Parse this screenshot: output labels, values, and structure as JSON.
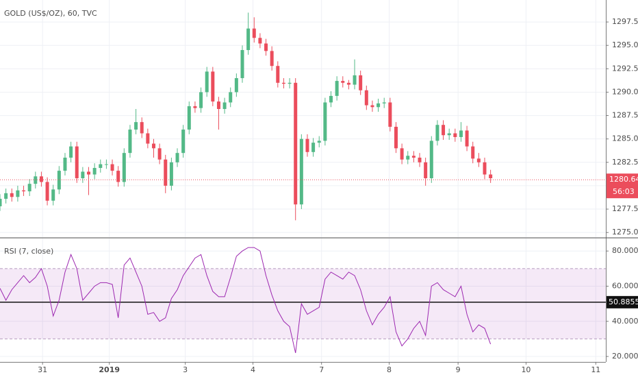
{
  "chart_data": [
    {
      "type": "candlestick",
      "title": "GOLD (US$/OZ), 60, TVC",
      "x": [
        0,
        2,
        4,
        6,
        8,
        10,
        12,
        14,
        16,
        18,
        20,
        22,
        24,
        26,
        28,
        30,
        32,
        34,
        36,
        38,
        40,
        42,
        44,
        46,
        48,
        50,
        52,
        54,
        56,
        58,
        60,
        62,
        64,
        66,
        68,
        70,
        72,
        74,
        76,
        78,
        80,
        82,
        84,
        86,
        88,
        90,
        92,
        94,
        96,
        98,
        100,
        102,
        104,
        106,
        108,
        110,
        112,
        114,
        116,
        118,
        120,
        122,
        124,
        126,
        128,
        130,
        132,
        134,
        136,
        138,
        140,
        142,
        144,
        146,
        148,
        150,
        152,
        154,
        156,
        158,
        160,
        162,
        164,
        166
      ],
      "open": [
        1277.8,
        1278.6,
        1279.2,
        1278.8,
        1279.5,
        1279.4,
        1280.2,
        1281.0,
        1280.4,
        1278.4,
        1279.6,
        1281.6,
        1283.0,
        1284.2,
        1280.8,
        1281.5,
        1281.2,
        1281.9,
        1282.3,
        1282.3,
        1281.6,
        1280.4,
        1283.5,
        1286.0,
        1286.8,
        1285.6,
        1284.5,
        1284.0,
        1282.8,
        1280.0,
        1282.5,
        1283.5,
        1286.0,
        1288.5,
        1288.3,
        1290.0,
        1292.2,
        1289.0,
        1288.2,
        1288.9,
        1290.0,
        1291.5,
        1294.5,
        1296.8,
        1295.8,
        1295.2,
        1294.4,
        1292.8,
        1291.0,
        1290.9,
        1291.0,
        1278.0,
        1285.0,
        1283.6,
        1284.6,
        1284.8,
        1288.9,
        1289.6,
        1291.2,
        1291.0,
        1290.8,
        1291.8,
        1290.2,
        1288.6,
        1288.4,
        1288.8,
        1288.9,
        1286.3,
        1284.0,
        1282.8,
        1283.2,
        1283.0,
        1282.5,
        1280.8,
        1284.8,
        1286.5,
        1285.4,
        1285.6,
        1285.2,
        1285.9,
        1284.2,
        1282.9,
        1282.5,
        1281.2
      ],
      "high": [
        1279.1,
        1279.7,
        1279.7,
        1280.0,
        1280.0,
        1280.7,
        1281.5,
        1281.5,
        1280.9,
        1280.1,
        1282.1,
        1283.5,
        1284.7,
        1284.7,
        1282.0,
        1282.0,
        1282.4,
        1282.8,
        1282.8,
        1282.8,
        1282.1,
        1284.0,
        1286.5,
        1288.2,
        1287.3,
        1286.1,
        1285.0,
        1284.5,
        1283.3,
        1283.0,
        1284.0,
        1286.5,
        1289.0,
        1289.0,
        1290.5,
        1292.7,
        1292.7,
        1289.5,
        1289.4,
        1290.5,
        1292.0,
        1295.0,
        1298.5,
        1298.0,
        1296.3,
        1295.7,
        1294.9,
        1293.3,
        1291.5,
        1291.5,
        1291.5,
        1285.5,
        1285.5,
        1285.1,
        1285.3,
        1289.4,
        1290.1,
        1291.7,
        1291.7,
        1291.3,
        1293.5,
        1292.3,
        1290.7,
        1289.1,
        1289.3,
        1289.4,
        1289.4,
        1286.8,
        1284.5,
        1283.7,
        1283.7,
        1283.5,
        1283.0,
        1285.3,
        1287.0,
        1287.0,
        1286.1,
        1286.1,
        1286.8,
        1286.4,
        1284.7,
        1283.5,
        1283.0,
        1281.7
      ],
      "low": [
        1277.3,
        1278.1,
        1278.3,
        1278.3,
        1278.9,
        1278.9,
        1279.7,
        1279.9,
        1277.9,
        1277.9,
        1279.1,
        1281.1,
        1282.5,
        1280.3,
        1280.3,
        1279.0,
        1280.7,
        1281.4,
        1281.8,
        1281.1,
        1279.9,
        1279.9,
        1283.0,
        1285.5,
        1285.1,
        1284.0,
        1283.0,
        1282.3,
        1279.2,
        1279.5,
        1282.0,
        1283.0,
        1285.5,
        1287.8,
        1287.8,
        1289.5,
        1288.5,
        1286.0,
        1287.7,
        1288.4,
        1289.5,
        1291.0,
        1294.0,
        1295.3,
        1294.7,
        1293.9,
        1292.3,
        1290.5,
        1290.4,
        1290.4,
        1276.3,
        1277.5,
        1283.1,
        1283.1,
        1284.1,
        1284.3,
        1288.4,
        1289.1,
        1290.5,
        1290.3,
        1290.3,
        1289.7,
        1288.1,
        1287.9,
        1287.9,
        1288.3,
        1285.8,
        1283.5,
        1282.3,
        1282.3,
        1282.5,
        1282.0,
        1280.0,
        1280.3,
        1284.3,
        1284.9,
        1284.9,
        1284.7,
        1284.7,
        1283.7,
        1282.4,
        1282.0,
        1280.7,
        1280.3
      ],
      "close": [
        1278.6,
        1279.2,
        1278.8,
        1279.5,
        1279.4,
        1280.2,
        1281.0,
        1280.4,
        1278.4,
        1279.6,
        1281.6,
        1283.0,
        1284.2,
        1280.8,
        1281.5,
        1281.2,
        1281.9,
        1282.3,
        1282.3,
        1281.6,
        1280.4,
        1283.5,
        1286.0,
        1286.8,
        1285.6,
        1284.5,
        1284.0,
        1282.8,
        1280.0,
        1282.5,
        1283.5,
        1286.0,
        1288.5,
        1288.3,
        1290.0,
        1292.2,
        1289.0,
        1288.2,
        1288.9,
        1290.0,
        1291.5,
        1294.5,
        1296.8,
        1295.8,
        1295.2,
        1294.4,
        1292.8,
        1291.0,
        1290.9,
        1291.0,
        1278.0,
        1285.0,
        1283.6,
        1284.6,
        1284.8,
        1288.9,
        1289.6,
        1291.2,
        1291.0,
        1290.8,
        1291.8,
        1290.2,
        1288.6,
        1288.4,
        1288.8,
        1288.9,
        1286.3,
        1284.0,
        1282.8,
        1283.2,
        1283.0,
        1282.5,
        1280.8,
        1284.8,
        1286.5,
        1285.4,
        1285.6,
        1285.2,
        1285.9,
        1284.2,
        1282.9,
        1282.5,
        1281.2,
        1280.8
      ],
      "up_color": "#53b987",
      "down_color": "#eb4d5c",
      "xlim": [
        0,
        205
      ],
      "ylim": [
        1274.5,
        1299.85
      ],
      "yticks": [
        {
          "value": 1275,
          "label": "1275.00"
        },
        {
          "value": 1277.5,
          "label": "1277.50"
        },
        {
          "value": 1280,
          "label": "1280.00"
        },
        {
          "value": 1282.5,
          "label": "1282.50"
        },
        {
          "value": 1285,
          "label": "1285.00"
        },
        {
          "value": 1287.5,
          "label": "1287.50"
        },
        {
          "value": 1290,
          "label": "1290.00"
        },
        {
          "value": 1292.5,
          "label": "1292.50"
        },
        {
          "value": 1295,
          "label": "1295.00"
        },
        {
          "value": 1297.5,
          "label": "1297.50"
        }
      ],
      "last_price": 1280.64,
      "countdown": "56:03",
      "grid": true
    },
    {
      "type": "line",
      "title": "RSI (7, close)",
      "color": "#9c27b0",
      "values": [
        58.8,
        52,
        58,
        62,
        66,
        62,
        65,
        70,
        60,
        43,
        52,
        68,
        78,
        70,
        52,
        56,
        60,
        62,
        62,
        61,
        42,
        72,
        76,
        68,
        60,
        44,
        45,
        40,
        42,
        53,
        58,
        66,
        71,
        76,
        78,
        66,
        57,
        54,
        54,
        65,
        77,
        80,
        82,
        82,
        80,
        66,
        55,
        46,
        40,
        37,
        22,
        50,
        44,
        46,
        48,
        64,
        68,
        66,
        64,
        68,
        66,
        58,
        46,
        38,
        44,
        48,
        54,
        34,
        26,
        30,
        36,
        40,
        32,
        60,
        62,
        58,
        56,
        54,
        60,
        44,
        34,
        38,
        36,
        27
      ],
      "xlim": [
        0,
        205
      ],
      "ylim": [
        16.9,
        87.1
      ],
      "yticks": [
        {
          "value": 20,
          "label": "20.0000"
        },
        {
          "value": 40,
          "label": "40.0000"
        },
        {
          "value": 60,
          "label": "60.0000"
        },
        {
          "value": 80,
          "label": "80.0000"
        }
      ],
      "band": [
        30,
        70
      ],
      "band_color": "#9c27b0",
      "level": 50.8855,
      "xticks": [
        {
          "value": 14.4,
          "label": "31"
        },
        {
          "value": 37,
          "label": "2019"
        },
        {
          "value": 62.7,
          "label": "3"
        },
        {
          "value": 85.6,
          "label": "4"
        },
        {
          "value": 108.8,
          "label": "7"
        },
        {
          "value": 131.7,
          "label": "8"
        },
        {
          "value": 155,
          "label": "9"
        },
        {
          "value": 178,
          "label": "10"
        },
        {
          "value": 201.6,
          "label": "11"
        }
      ],
      "grid": true
    }
  ]
}
